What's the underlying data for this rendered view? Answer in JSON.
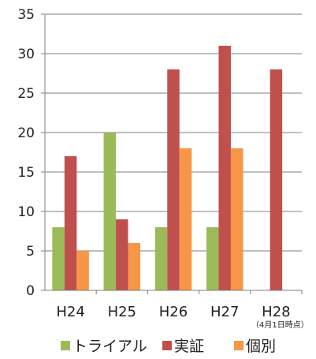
{
  "chart_data": {
    "type": "bar",
    "title": "",
    "xlabel": "",
    "ylabel": "",
    "categories": [
      "H24",
      "H25",
      "H26",
      "H27",
      "H28"
    ],
    "category_note": {
      "index": 4,
      "text": "（4月1日時点）"
    },
    "ylim": [
      0,
      35
    ],
    "yticks": [
      0,
      5,
      10,
      15,
      20,
      25,
      30,
      35
    ],
    "grid": true,
    "legend_position": "bottom",
    "series": [
      {
        "name": "トライアル",
        "color": "#9bbb59",
        "values": [
          8,
          20,
          8,
          8,
          null
        ]
      },
      {
        "name": "実証",
        "color": "#c0504d",
        "values": [
          17,
          9,
          28,
          31,
          28
        ]
      },
      {
        "name": "個別",
        "color": "#f79646",
        "values": [
          5,
          6,
          18,
          18,
          null
        ]
      }
    ]
  }
}
